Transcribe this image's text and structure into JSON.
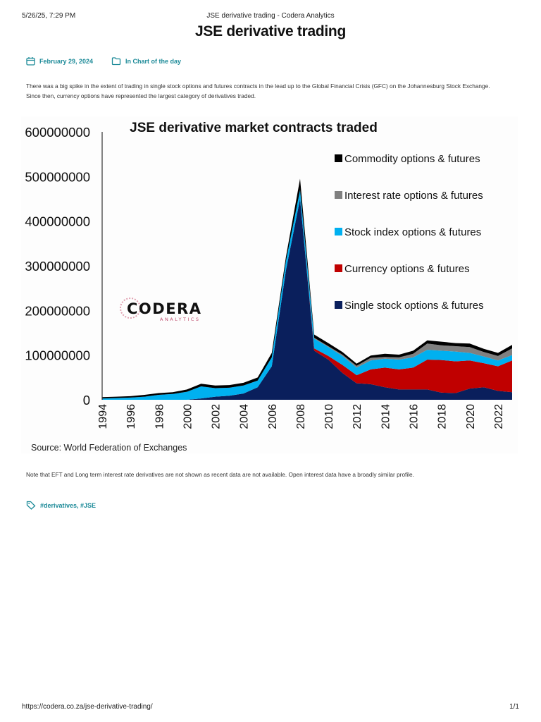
{
  "print_header": {
    "datetime": "5/26/25, 7:29 PM",
    "page_title": "JSE derivative trading - Codera Analytics"
  },
  "article": {
    "title": "JSE derivative trading",
    "date": "February 29, 2024",
    "category": "In Chart of the day",
    "intro": "There was a big spike in the extent of trading in single stock options and futures contracts in the lead up to the Global Financial Crisis (GFC) on the Johannesburg Stock Exchange. Since then, currency options have represented the largest category of derivatives traded.",
    "note": "Note that EFT and Long term interest rate derivatives are not shown as recent data are not available. Open interest data have a broadly similar profile.",
    "tags": "#derivatives, #JSE",
    "accent_color": "#1c8a98"
  },
  "print_footer": {
    "url": "https://codera.co.za/jse-derivative-trading/",
    "page": "1/1"
  },
  "chart_data": {
    "type": "area",
    "stacked": true,
    "title": "JSE derivative market contracts traded",
    "source": "Source: World Federation of Exchanges",
    "logo": {
      "name": "CODERA",
      "sub": "ANALYTICS"
    },
    "ylim": [
      0,
      600000000
    ],
    "yticks": [
      "0",
      "100000000",
      "200000000",
      "300000000",
      "400000000",
      "500000000",
      "600000000"
    ],
    "xlim": [
      1994,
      2023
    ],
    "xticks": [
      "1994",
      "1996",
      "1998",
      "2000",
      "2002",
      "2004",
      "2006",
      "2008",
      "2010",
      "2012",
      "2014",
      "2016",
      "2018",
      "2020",
      "2022"
    ],
    "legend_placement": "right",
    "x": [
      1994,
      1995,
      1996,
      1997,
      1998,
      1999,
      2000,
      2001,
      2002,
      2003,
      2004,
      2005,
      2006,
      2007,
      2008,
      2009,
      2010,
      2011,
      2012,
      2013,
      2014,
      2015,
      2016,
      2017,
      2018,
      2019,
      2020,
      2021,
      2022,
      2023
    ],
    "series": [
      {
        "name": "Single stock options & futures",
        "color": "#0a1f5c",
        "values": [
          0,
          0,
          0,
          0,
          0,
          0,
          0,
          3000000,
          7000000,
          9000000,
          14000000,
          28000000,
          75000000,
          290000000,
          450000000,
          110000000,
          90000000,
          60000000,
          37000000,
          35000000,
          28000000,
          23000000,
          23000000,
          23000000,
          16000000,
          15000000,
          25000000,
          28000000,
          20000000,
          17000000
        ]
      },
      {
        "name": "Currency options & futures",
        "color": "#c00000",
        "values": [
          0,
          0,
          0,
          0,
          0,
          0,
          0,
          0,
          0,
          0,
          0,
          0,
          0,
          0,
          0,
          5000000,
          8000000,
          18000000,
          18000000,
          33000000,
          44000000,
          45000000,
          49000000,
          67000000,
          73000000,
          71000000,
          63000000,
          54000000,
          55000000,
          71000000
        ]
      },
      {
        "name": "Stock index options & futures",
        "color": "#00b0f0",
        "values": [
          3000000,
          4000000,
          5000000,
          7000000,
          11000000,
          13000000,
          18000000,
          27000000,
          19000000,
          18000000,
          18000000,
          15000000,
          20000000,
          20000000,
          20000000,
          22000000,
          20000000,
          20000000,
          17000000,
          20000000,
          20000000,
          22000000,
          23000000,
          22000000,
          21000000,
          22000000,
          17000000,
          15000000,
          13000000,
          12000000
        ]
      },
      {
        "name": "Interest rate options & futures",
        "color": "#808080",
        "values": [
          0,
          0,
          0,
          0,
          0,
          0,
          0,
          0,
          0,
          0,
          0,
          0,
          0,
          0,
          0,
          2000000,
          2000000,
          3000000,
          4000000,
          6000000,
          4000000,
          5000000,
          8000000,
          14000000,
          12000000,
          12000000,
          13000000,
          10000000,
          10000000,
          15000000
        ]
      },
      {
        "name": "Commodity options & futures",
        "color": "#000000",
        "values": [
          3000000,
          3000000,
          3000000,
          4000000,
          4000000,
          4000000,
          5000000,
          6000000,
          6000000,
          6000000,
          6000000,
          7000000,
          10000000,
          10000000,
          25000000,
          7000000,
          7000000,
          6000000,
          5000000,
          5000000,
          7000000,
          6000000,
          7000000,
          7000000,
          8000000,
          7000000,
          8000000,
          7000000,
          7000000,
          8000000
        ]
      }
    ]
  }
}
